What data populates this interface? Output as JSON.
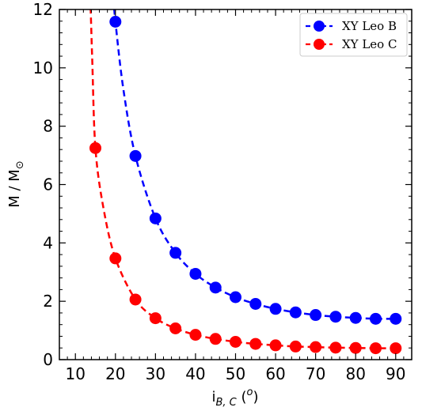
{
  "chart_data": {
    "type": "line",
    "title": "",
    "xlabel": {
      "base": "i",
      "sub": "B, C",
      "tail": " (",
      "sup": "o",
      "close": ")"
    },
    "ylabel": {
      "base": "M / M",
      "sub": "⊙"
    },
    "xlim": [
      6,
      94
    ],
    "ylim": [
      0,
      12
    ],
    "xticks": [
      10,
      20,
      30,
      40,
      50,
      60,
      70,
      80,
      90
    ],
    "yticks": [
      0,
      2,
      4,
      6,
      8,
      10,
      12
    ],
    "grid": false,
    "legend_position": "top-right",
    "series": [
      {
        "name": "XY Leo B",
        "color": "#0000ff",
        "x": [
          20,
          25,
          30,
          35,
          40,
          45,
          50,
          55,
          60,
          65,
          70,
          75,
          80,
          85,
          90
        ],
        "y": [
          11.58,
          6.98,
          4.84,
          3.66,
          2.94,
          2.47,
          2.14,
          1.91,
          1.74,
          1.62,
          1.53,
          1.47,
          1.43,
          1.4,
          1.4
        ],
        "curve_x": [
          17.38,
          18,
          19,
          20,
          22,
          25,
          30,
          35,
          40,
          45,
          50,
          55,
          60,
          65,
          70,
          75,
          80,
          85,
          90
        ],
        "curve_y": [
          16.6,
          14.35,
          13.1,
          11.58,
          9.25,
          6.98,
          4.84,
          3.66,
          2.94,
          2.47,
          2.14,
          1.91,
          1.74,
          1.62,
          1.53,
          1.47,
          1.43,
          1.4,
          1.4
        ]
      },
      {
        "name": "XY Leo C",
        "color": "#ff0000",
        "x": [
          15,
          20,
          25,
          30,
          35,
          40,
          45,
          50,
          55,
          60,
          65,
          70,
          75,
          80,
          85,
          90
        ],
        "y": [
          7.25,
          3.47,
          2.06,
          1.42,
          1.07,
          0.85,
          0.71,
          0.61,
          0.54,
          0.49,
          0.45,
          0.43,
          0.41,
          0.4,
          0.39,
          0.39
        ],
        "curve_x": [
          12.7,
          13.5,
          14.2,
          15,
          17,
          20,
          25,
          30,
          35,
          40,
          45,
          50,
          55,
          60,
          65,
          70,
          75,
          80,
          85,
          90
        ],
        "curve_y": [
          16.3,
          13.4,
          10.3,
          7.25,
          5.2,
          3.47,
          2.06,
          1.42,
          1.07,
          0.85,
          0.71,
          0.61,
          0.54,
          0.49,
          0.45,
          0.43,
          0.41,
          0.4,
          0.39,
          0.39
        ]
      }
    ]
  }
}
